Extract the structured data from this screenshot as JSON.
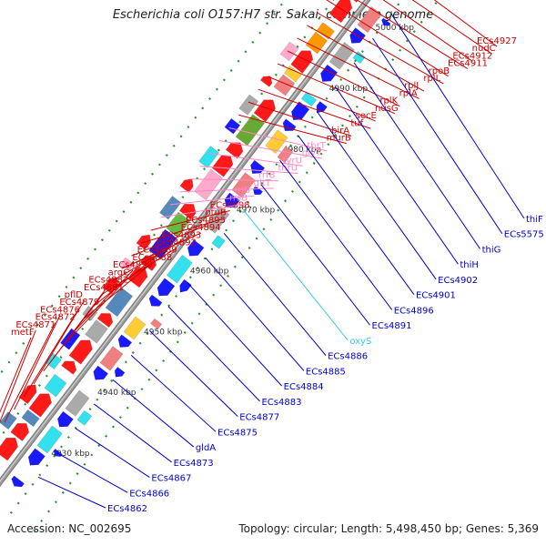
{
  "header": {
    "title": "Escherichia coli O157:H7 str. Sakai, complete genome"
  },
  "footer": {
    "accession": "Accession: NC_002695",
    "summary": "Topology: circular; Length: 5,498,450 bp; Genes: 5,369"
  },
  "colors": {
    "backbone": "#9a9a9a",
    "forward_strand": "#ff1a1a",
    "reverse_strand": "#1a1aff",
    "forward_label": "#cc0000",
    "reverse_label": "#0000cc",
    "rna_label": "#ff88c8",
    "ruler_tick": "#2a8f2a",
    "ruler_text": "#333333"
  },
  "ruler": [
    "4930 kbp",
    "4940 kbp",
    "4950 kbp",
    "4960 kbp",
    "4970 kbp",
    "4980 kbp",
    "4990 kbp",
    "5000 kbp"
  ],
  "forward_genes": [
    {
      "label": "metF",
      "type": "cds"
    },
    {
      "label": "ECs4871",
      "type": "cds"
    },
    {
      "label": "ECs4872",
      "type": "cds"
    },
    {
      "label": "ECs4876",
      "type": "cds"
    },
    {
      "label": "ECs4879",
      "type": "cds"
    },
    {
      "label": "pflD",
      "type": "cds"
    },
    {
      "label": "ECs4881",
      "type": "cds"
    },
    {
      "label": "ECs4882",
      "type": "cds"
    },
    {
      "label": "argC",
      "type": "cds"
    },
    {
      "label": "ECs4890",
      "type": "cds"
    },
    {
      "label": "ECs4888",
      "type": "cds"
    },
    {
      "label": "ECs4889",
      "type": "cds"
    },
    {
      "label": "ECs4892",
      "type": "cds"
    },
    {
      "label": "ECs4893",
      "type": "cds"
    },
    {
      "label": "ECs4894",
      "type": "cds"
    },
    {
      "label": "ECs4895",
      "type": "cds"
    },
    {
      "label": "btuB",
      "type": "cds"
    },
    {
      "label": "ECs4898",
      "type": "cds"
    },
    {
      "label": "rrsB",
      "type": "rna"
    },
    {
      "label": "rrlB",
      "type": "rna"
    },
    {
      "label": "gltT",
      "type": "rna"
    },
    {
      "label": "rrfB",
      "type": "rna"
    },
    {
      "label": "thrU",
      "type": "rna"
    },
    {
      "label": "tyrU",
      "type": "rna"
    },
    {
      "label": "glyT",
      "type": "rna"
    },
    {
      "label": "thrT",
      "type": "rna"
    },
    {
      "label": "murB",
      "type": "cds"
    },
    {
      "label": "birA",
      "type": "cds"
    },
    {
      "label": "tuf",
      "type": "cds"
    },
    {
      "label": "secE",
      "type": "cds"
    },
    {
      "label": "nusG",
      "type": "cds"
    },
    {
      "label": "rplK",
      "type": "cds"
    },
    {
      "label": "rplA",
      "type": "cds"
    },
    {
      "label": "rplJ",
      "type": "cds"
    },
    {
      "label": "rplL",
      "type": "cds"
    },
    {
      "label": "rpoB",
      "type": "cds"
    },
    {
      "label": "ECs4911",
      "type": "cds"
    },
    {
      "label": "ECs4912",
      "type": "cds"
    },
    {
      "label": "nudC",
      "type": "cds"
    },
    {
      "label": "ECs4927",
      "type": "cds"
    }
  ],
  "reverse_genes": [
    {
      "label": "ECs4862",
      "type": "cds"
    },
    {
      "label": "ECs4866",
      "type": "cds"
    },
    {
      "label": "ECs4867",
      "type": "cds"
    },
    {
      "label": "ECs4873",
      "type": "cds"
    },
    {
      "label": "gldA",
      "type": "cds"
    },
    {
      "label": "ECs4875",
      "type": "cds"
    },
    {
      "label": "ECs4877",
      "type": "cds"
    },
    {
      "label": "ECs4883",
      "type": "cds"
    },
    {
      "label": "ECs4884",
      "type": "cds"
    },
    {
      "label": "ECs4885",
      "type": "cds"
    },
    {
      "label": "ECs4886",
      "type": "cds"
    },
    {
      "label": "oxyS",
      "type": "rna"
    },
    {
      "label": "ECs4891",
      "type": "cds"
    },
    {
      "label": "ECs4896",
      "type": "cds"
    },
    {
      "label": "ECs4901",
      "type": "cds"
    },
    {
      "label": "ECs4902",
      "type": "cds"
    },
    {
      "label": "thiH",
      "type": "cds"
    },
    {
      "label": "thiG",
      "type": "cds"
    },
    {
      "label": "ECs5575",
      "type": "cds"
    },
    {
      "label": "thiF",
      "type": "cds"
    }
  ]
}
